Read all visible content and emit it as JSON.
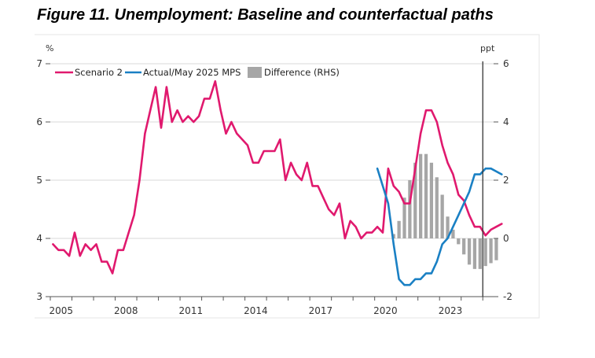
{
  "figure_title": "Figure 11. Unemployment: Baseline and counterfactual paths",
  "chart_data": {
    "type": "line",
    "title": "Figure 11. Unemployment: Baseline and counterfactual paths",
    "y_left_unit": "%",
    "y_right_unit": "ppt",
    "ylim_left": [
      3,
      7
    ],
    "ylim_right": [
      -2,
      6
    ],
    "y_left_ticks": [
      "3",
      "4",
      "5",
      "6",
      "7"
    ],
    "y_right_ticks": [
      "-2",
      "0",
      "2",
      "4",
      "6"
    ],
    "x_ticks": [
      "2005",
      "2008",
      "2011",
      "2014",
      "2017",
      "2020",
      "2023"
    ],
    "xlim": [
      2005.0,
      2025.5
    ],
    "vline_x": 2025.0,
    "grid": true,
    "legend_position": "top-left",
    "colors": {
      "scenario2": "#e0196e",
      "actual": "#1a80c4",
      "difference": "#a6a6a6"
    },
    "series": [
      {
        "name": "Scenario 2",
        "kind": "line",
        "axis": "left",
        "x": [
          2005.0,
          2005.25,
          2005.5,
          2005.75,
          2006.0,
          2006.25,
          2006.5,
          2006.75,
          2007.0,
          2007.25,
          2007.5,
          2007.75,
          2008.0,
          2008.25,
          2008.5,
          2008.75,
          2009.0,
          2009.25,
          2009.5,
          2009.75,
          2010.0,
          2010.25,
          2010.5,
          2010.75,
          2011.0,
          2011.25,
          2011.5,
          2011.75,
          2012.0,
          2012.25,
          2012.5,
          2012.75,
          2013.0,
          2013.25,
          2013.5,
          2013.75,
          2014.0,
          2014.25,
          2014.5,
          2014.75,
          2015.0,
          2015.25,
          2015.5,
          2015.75,
          2016.0,
          2016.25,
          2016.5,
          2016.75,
          2017.0,
          2017.25,
          2017.5,
          2017.75,
          2018.0,
          2018.25,
          2018.5,
          2018.75,
          2019.0,
          2019.25,
          2019.5,
          2019.75,
          2020.0,
          2020.25,
          2020.5,
          2020.75,
          2021.0,
          2021.25,
          2021.5,
          2021.75,
          2022.0,
          2022.25,
          2022.5,
          2022.75,
          2023.0,
          2023.25,
          2023.5,
          2023.75,
          2024.0,
          2024.25,
          2024.5,
          2024.75,
          2025.0,
          2025.25,
          2025.5,
          2025.75
        ],
        "values": [
          3.9,
          3.8,
          3.8,
          3.7,
          4.1,
          3.7,
          3.9,
          3.8,
          3.9,
          3.6,
          3.6,
          3.4,
          3.8,
          3.8,
          4.1,
          4.4,
          5.0,
          5.8,
          6.2,
          6.6,
          5.9,
          6.6,
          6.0,
          6.2,
          6.0,
          6.1,
          6.0,
          6.1,
          6.4,
          6.4,
          6.7,
          6.2,
          5.8,
          6.0,
          5.8,
          5.7,
          5.6,
          5.3,
          5.3,
          5.5,
          5.5,
          5.5,
          5.7,
          5.0,
          5.3,
          5.1,
          5.0,
          5.3,
          4.9,
          4.9,
          4.7,
          4.5,
          4.4,
          4.6,
          4.0,
          4.3,
          4.2,
          4.0,
          4.1,
          4.1,
          4.2,
          4.1,
          5.2,
          4.9,
          4.8,
          4.6,
          4.6,
          5.2,
          5.8,
          6.2,
          6.2,
          6.0,
          5.6,
          5.3,
          5.1,
          4.75,
          4.65,
          4.4,
          4.2,
          4.2,
          4.05,
          4.15,
          4.2,
          4.25
        ]
      },
      {
        "name": "Actual/May 2025 MPS",
        "kind": "line",
        "axis": "left",
        "x": [
          2020.0,
          2020.25,
          2020.5,
          2020.75,
          2021.0,
          2021.25,
          2021.5,
          2021.75,
          2022.0,
          2022.25,
          2022.5,
          2022.75,
          2023.0,
          2023.25,
          2023.5,
          2023.75,
          2024.0,
          2024.25,
          2024.5,
          2024.75,
          2025.0,
          2025.25,
          2025.5,
          2025.75
        ],
        "values": [
          5.2,
          4.9,
          4.6,
          3.9,
          3.3,
          3.2,
          3.2,
          3.3,
          3.3,
          3.4,
          3.4,
          3.6,
          3.9,
          4.0,
          4.2,
          4.4,
          4.6,
          4.8,
          5.1,
          5.1,
          5.2,
          5.2,
          5.15,
          5.1
        ]
      },
      {
        "name": "Difference (RHS)",
        "kind": "bar",
        "axis": "right",
        "x": [
          2020.75,
          2021.0,
          2021.25,
          2021.5,
          2021.75,
          2022.0,
          2022.25,
          2022.5,
          2022.75,
          2023.0,
          2023.25,
          2023.5,
          2023.75,
          2024.0,
          2024.25,
          2024.5,
          2024.75,
          2025.0,
          2025.25,
          2025.5
        ],
        "values": [
          0.15,
          0.6,
          1.4,
          2.0,
          2.6,
          2.9,
          2.9,
          2.6,
          2.1,
          1.5,
          0.75,
          0.3,
          -0.2,
          -0.55,
          -0.9,
          -1.05,
          -1.05,
          -0.95,
          -0.85,
          -0.75
        ]
      }
    ]
  }
}
